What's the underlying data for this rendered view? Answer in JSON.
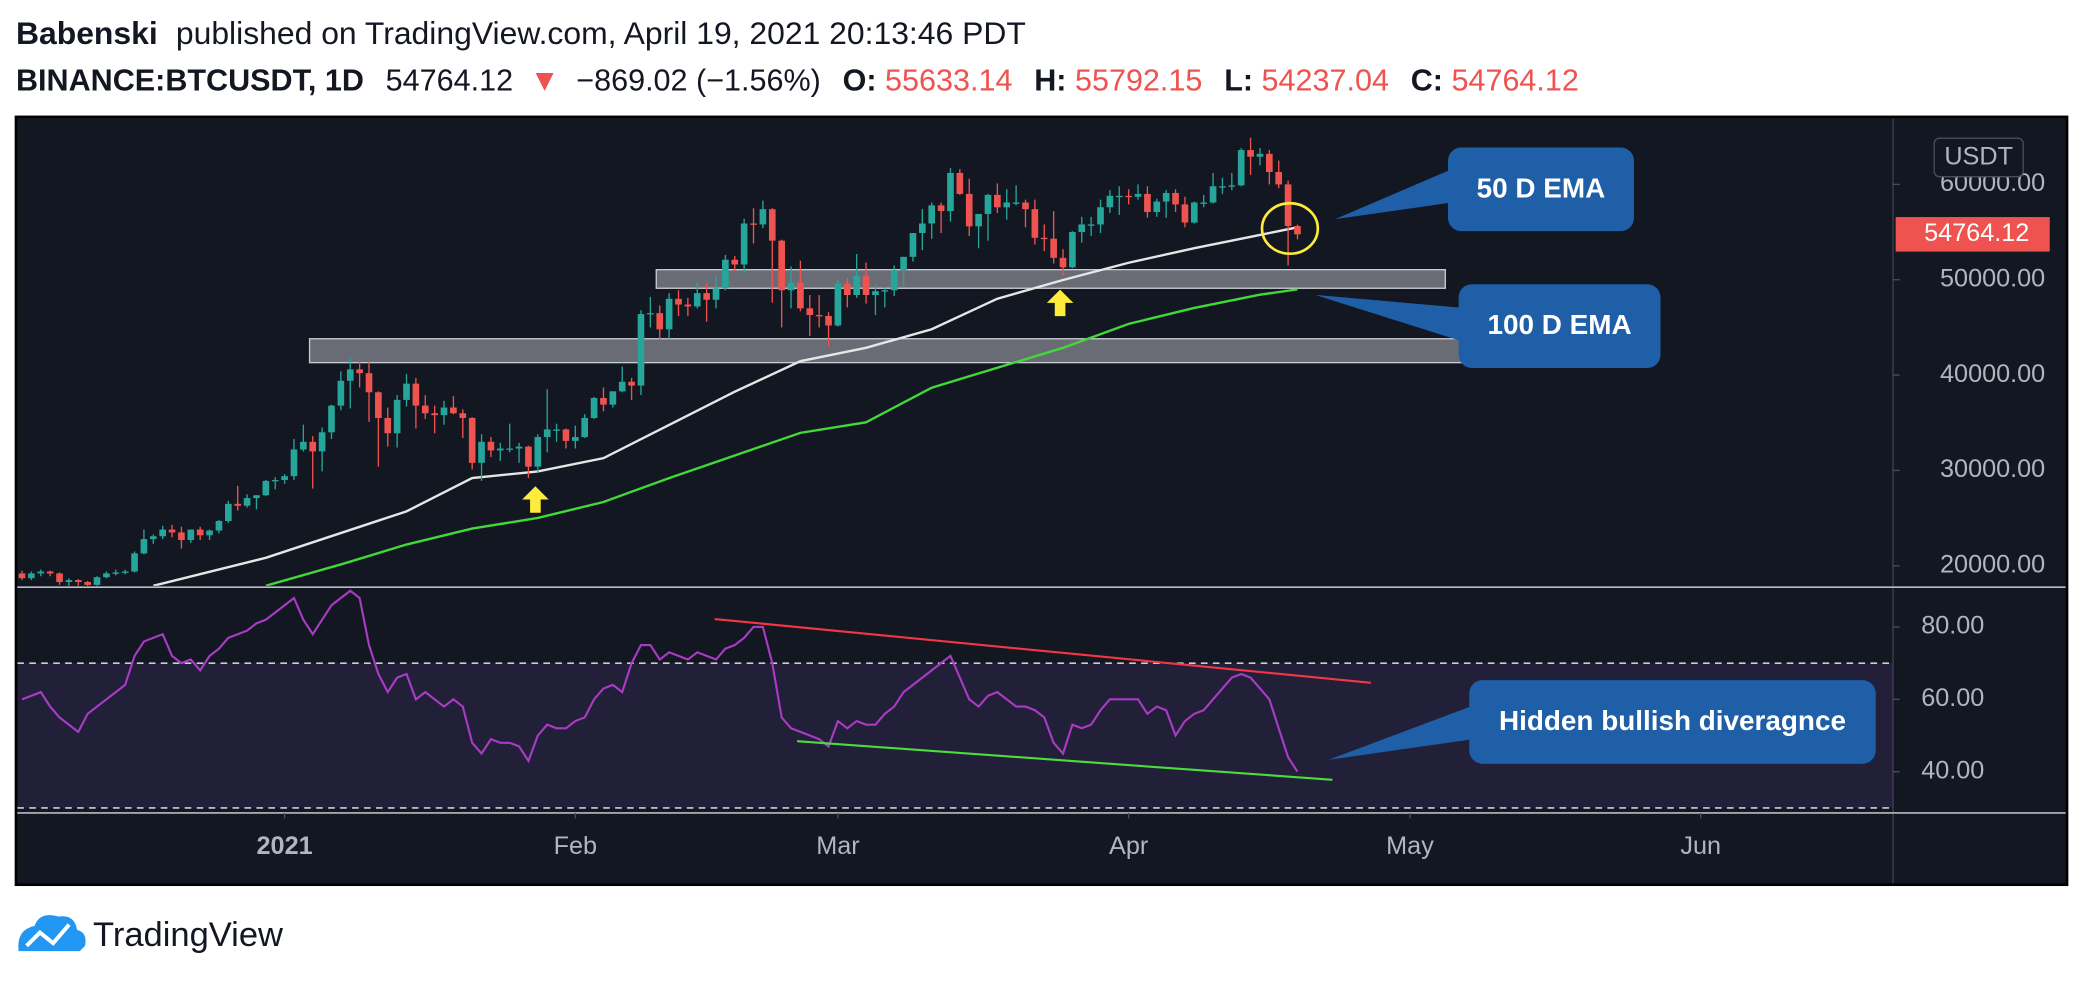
{
  "header": {
    "author": "Babenski",
    "published": "published on TradingView.com, April 19, 2021 20:13:46 PDT",
    "symbol": "BINANCE:BTCUSDT, 1D",
    "arrow": "▼",
    "change": "−869.02 (−1.56%)",
    "o": "O:",
    "h": "H:",
    "l": "L:",
    "c": "C:"
  },
  "footer": {
    "brand": "TradingView"
  },
  "chart_data": [
    {
      "type": "candlestick",
      "y_unit": "USDT",
      "up_color": "#26a69a",
      "down_color": "#ef5350",
      "xlim": [
        -0.5,
        199.5
      ],
      "xticks": [
        {
          "value": 28,
          "label": "2021"
        },
        {
          "value": 59,
          "label": "Feb"
        },
        {
          "value": 87,
          "label": "Mar"
        },
        {
          "value": 118,
          "label": "Apr"
        },
        {
          "value": 148,
          "label": "May"
        },
        {
          "value": 179,
          "label": "Jun"
        }
      ],
      "ylim": [
        17900,
        66800
      ],
      "yticks": [
        {
          "value": 20000,
          "label": "20000.00"
        },
        {
          "value": 30000,
          "label": "30000.00"
        },
        {
          "value": 40000,
          "label": "40000.00"
        },
        {
          "value": 50000,
          "label": "50000.00"
        },
        {
          "value": 60000,
          "label": "60000.00"
        }
      ],
      "grid": false,
      "candles": [
        [
          19200,
          19500,
          18500,
          18700
        ],
        [
          18700,
          19400,
          18500,
          19200
        ],
        [
          19200,
          19600,
          18900,
          19400
        ],
        [
          19400,
          19500,
          18900,
          19200
        ],
        [
          19200,
          19300,
          18000,
          18300
        ],
        [
          18300,
          18700,
          17800,
          18500
        ],
        [
          18500,
          18600,
          17900,
          18300
        ],
        [
          18300,
          18400,
          17600,
          18000
        ],
        [
          18000,
          18900,
          17900,
          18800
        ],
        [
          18800,
          19400,
          18700,
          19200
        ],
        [
          19200,
          19600,
          19000,
          19300
        ],
        [
          19300,
          19600,
          19100,
          19400
        ],
        [
          19400,
          21500,
          19300,
          21300
        ],
        [
          21300,
          23800,
          21200,
          22800
        ],
        [
          22800,
          23300,
          22300,
          23100
        ],
        [
          23100,
          24200,
          22800,
          23800
        ],
        [
          23800,
          24300,
          23000,
          23500
        ],
        [
          23500,
          24100,
          21800,
          22700
        ],
        [
          22700,
          23800,
          22400,
          23800
        ],
        [
          23800,
          24100,
          22700,
          23200
        ],
        [
          23200,
          23800,
          22700,
          23700
        ],
        [
          23700,
          24800,
          23400,
          24700
        ],
        [
          24700,
          26800,
          24500,
          26500
        ],
        [
          26500,
          28400,
          25800,
          26300
        ],
        [
          26300,
          27500,
          26100,
          27100
        ],
        [
          27100,
          27400,
          25900,
          27400
        ],
        [
          27400,
          29000,
          27300,
          28900
        ],
        [
          28900,
          29300,
          28000,
          29000
        ],
        [
          29000,
          29600,
          28600,
          29400
        ],
        [
          29400,
          33300,
          29000,
          32200
        ],
        [
          32200,
          34800,
          32000,
          33000
        ],
        [
          33000,
          33600,
          28100,
          32000
        ],
        [
          32000,
          34500,
          29900,
          34000
        ],
        [
          34000,
          36900,
          33300,
          36800
        ],
        [
          36800,
          40400,
          36300,
          39400
        ],
        [
          39400,
          41900,
          36500,
          40600
        ],
        [
          40600,
          41400,
          38700,
          40200
        ],
        [
          40200,
          41400,
          35100,
          38200
        ],
        [
          38200,
          38300,
          30400,
          35500
        ],
        [
          35500,
          36600,
          32500,
          33900
        ],
        [
          33900,
          37900,
          32400,
          37400
        ],
        [
          37400,
          40100,
          36700,
          39100
        ],
        [
          39100,
          39700,
          34400,
          36800
        ],
        [
          36800,
          37900,
          35400,
          36000
        ],
        [
          36000,
          36800,
          33900,
          35800
        ],
        [
          35800,
          37300,
          34800,
          36600
        ],
        [
          36600,
          37800,
          35900,
          36000
        ],
        [
          36000,
          36400,
          33400,
          35500
        ],
        [
          35500,
          35600,
          30100,
          30800
        ],
        [
          30800,
          33800,
          28900,
          33000
        ],
        [
          33000,
          33500,
          31400,
          32100
        ],
        [
          32100,
          32900,
          31000,
          32300
        ],
        [
          32300,
          34900,
          31900,
          32300
        ],
        [
          32300,
          32900,
          30800,
          32500
        ],
        [
          32500,
          32600,
          29200,
          30400
        ],
        [
          30400,
          33800,
          29800,
          33500
        ],
        [
          33500,
          38500,
          31900,
          34300
        ],
        [
          34300,
          34900,
          33000,
          34300
        ],
        [
          34300,
          34400,
          32300,
          33100
        ],
        [
          33100,
          34700,
          32300,
          33500
        ],
        [
          33500,
          35900,
          33400,
          35500
        ],
        [
          35500,
          37700,
          35400,
          37600
        ],
        [
          37600,
          38700,
          36200,
          36900
        ],
        [
          36900,
          38300,
          36600,
          38300
        ],
        [
          38300,
          40900,
          38200,
          39300
        ],
        [
          39300,
          39700,
          37400,
          38900
        ],
        [
          38900,
          46800,
          37900,
          46400
        ],
        [
          46400,
          48200,
          45000,
          46500
        ],
        [
          46500,
          47300,
          43700,
          44800
        ],
        [
          44800,
          48600,
          43800,
          48000
        ],
        [
          48000,
          48900,
          46200,
          47400
        ],
        [
          47400,
          48100,
          46200,
          47200
        ],
        [
          47200,
          49700,
          47000,
          48600
        ],
        [
          48600,
          49600,
          45600,
          47900
        ],
        [
          47900,
          50500,
          47000,
          49100
        ],
        [
          49100,
          52600,
          48900,
          52100
        ],
        [
          52100,
          52500,
          50900,
          51600
        ],
        [
          51600,
          56400,
          50700,
          55900
        ],
        [
          55900,
          57500,
          53800,
          55800
        ],
        [
          55800,
          58300,
          55400,
          57400
        ],
        [
          57400,
          57500,
          47600,
          54100
        ],
        [
          54100,
          54200,
          45000,
          48900
        ],
        [
          48900,
          51400,
          47000,
          49700
        ],
        [
          49700,
          52000,
          46700,
          47000
        ],
        [
          47000,
          48400,
          44100,
          46300
        ],
        [
          46300,
          48400,
          45000,
          46200
        ],
        [
          46200,
          46600,
          43000,
          45200
        ],
        [
          45200,
          50000,
          45100,
          49600
        ],
        [
          49600,
          50200,
          47100,
          48400
        ],
        [
          48400,
          52700,
          48100,
          50400
        ],
        [
          50400,
          51800,
          47500,
          48400
        ],
        [
          48400,
          49500,
          46300,
          48800
        ],
        [
          48800,
          49200,
          47100,
          48900
        ],
        [
          48900,
          51500,
          48300,
          51000
        ],
        [
          51000,
          52400,
          49300,
          52400
        ],
        [
          52400,
          54900,
          51900,
          54900
        ],
        [
          54900,
          57400,
          53100,
          55900
        ],
        [
          55900,
          58100,
          54300,
          57800
        ],
        [
          57800,
          58100,
          54900,
          57200
        ],
        [
          57200,
          61700,
          56100,
          61200
        ],
        [
          61200,
          61600,
          58900,
          59000
        ],
        [
          59000,
          60600,
          54600,
          55600
        ],
        [
          55600,
          56900,
          53300,
          56900
        ],
        [
          56900,
          59000,
          54100,
          58900
        ],
        [
          58900,
          60100,
          57000,
          57600
        ],
        [
          57600,
          59500,
          56300,
          58100
        ],
        [
          58100,
          59900,
          57800,
          58100
        ],
        [
          58100,
          58400,
          55500,
          57400
        ],
        [
          57400,
          58400,
          53700,
          54400
        ],
        [
          54400,
          55800,
          53000,
          54300
        ],
        [
          54300,
          57200,
          51700,
          52300
        ],
        [
          52300,
          53200,
          50400,
          51300
        ],
        [
          51300,
          55100,
          51200,
          55000
        ],
        [
          55000,
          56600,
          53900,
          55800
        ],
        [
          55800,
          56600,
          54600,
          55800
        ],
        [
          55800,
          58400,
          54900,
          57600
        ],
        [
          57600,
          59400,
          57000,
          58800
        ],
        [
          58800,
          59800,
          56800,
          58800
        ],
        [
          58800,
          59500,
          57900,
          58700
        ],
        [
          58700,
          60000,
          58400,
          59000
        ],
        [
          59000,
          59800,
          56500,
          57100
        ],
        [
          57100,
          58500,
          56600,
          58200
        ],
        [
          58200,
          59400,
          56500,
          59100
        ],
        [
          59100,
          59500,
          57100,
          57900
        ],
        [
          57900,
          58700,
          55500,
          56000
        ],
        [
          56000,
          58200,
          55900,
          58100
        ],
        [
          58100,
          58900,
          57600,
          58100
        ],
        [
          58100,
          61200,
          58000,
          59800
        ],
        [
          59800,
          60700,
          59000,
          59800
        ],
        [
          59800,
          61200,
          59400,
          59900
        ],
        [
          59900,
          63800,
          59800,
          63600
        ],
        [
          63600,
          64900,
          61000,
          62900
        ],
        [
          62900,
          63800,
          62000,
          63200
        ],
        [
          63200,
          63600,
          60000,
          61300
        ],
        [
          61300,
          62500,
          59600,
          60000
        ],
        [
          60000,
          60400,
          51500,
          55633.14
        ],
        [
          55633.14,
          55792.15,
          54237.04,
          54764.12
        ]
      ],
      "overlays": [
        {
          "name": "50 D EMA",
          "color": "#e6e6e6",
          "x": [
            14,
            26,
            41,
            48,
            55,
            62,
            69,
            76,
            83,
            90,
            97,
            104,
            111,
            118,
            125,
            132,
            136
          ],
          "values": [
            17900,
            20840,
            25710,
            29200,
            29900,
            31290,
            34770,
            38260,
            41460,
            42860,
            44810,
            48010,
            49970,
            51780,
            53310,
            54700,
            55500
          ]
        },
        {
          "name": "100 D EMA",
          "color": "#43d83a",
          "x": [
            26,
            34,
            41,
            48,
            55,
            62,
            69,
            76,
            83,
            90,
            97,
            104,
            111,
            118,
            125,
            132,
            136
          ],
          "values": [
            17910,
            20140,
            22230,
            23900,
            25020,
            26690,
            29200,
            31570,
            33940,
            35050,
            38680,
            40770,
            42860,
            45370,
            47040,
            48430,
            48990
          ]
        }
      ]
    },
    {
      "type": "line",
      "color": "#a93bc4",
      "annotation": "Hidden bullish diveragnce",
      "ylim": [
        28.6,
        91
      ],
      "yticks": [
        {
          "value": 40,
          "label": "40.00"
        },
        {
          "value": 60,
          "label": "60.00"
        },
        {
          "value": 80,
          "label": "80.00"
        }
      ],
      "levels": [
        70,
        30
      ],
      "values": [
        60,
        61,
        62,
        58,
        55,
        53,
        51,
        56,
        58,
        60,
        62,
        64,
        72,
        76,
        77,
        78,
        72,
        70,
        71,
        68,
        72,
        74,
        77,
        78,
        79,
        81,
        82,
        84,
        86,
        88,
        82,
        78,
        82,
        86,
        88,
        90,
        88,
        75,
        67,
        62,
        66,
        67,
        60,
        62,
        60,
        58,
        60,
        58,
        48,
        45,
        49,
        48,
        48,
        47,
        43,
        50,
        53,
        52,
        52,
        54,
        55,
        60,
        63,
        64,
        62,
        70,
        75,
        75,
        71,
        73,
        72,
        71,
        73,
        72,
        71,
        74,
        75,
        77,
        80,
        80,
        70,
        55,
        52,
        51,
        50,
        49,
        47,
        54,
        52,
        54,
        53,
        53,
        56,
        58,
        62,
        64,
        66,
        68,
        70,
        72,
        66,
        60,
        58,
        61,
        62,
        60,
        58,
        58,
        57,
        55,
        48,
        45,
        53,
        52,
        53,
        57,
        60,
        60,
        60,
        60,
        56,
        58,
        57,
        50,
        54,
        56,
        57,
        60,
        63,
        66,
        67,
        66,
        63,
        60,
        52,
        44,
        40
      ]
    }
  ]
}
